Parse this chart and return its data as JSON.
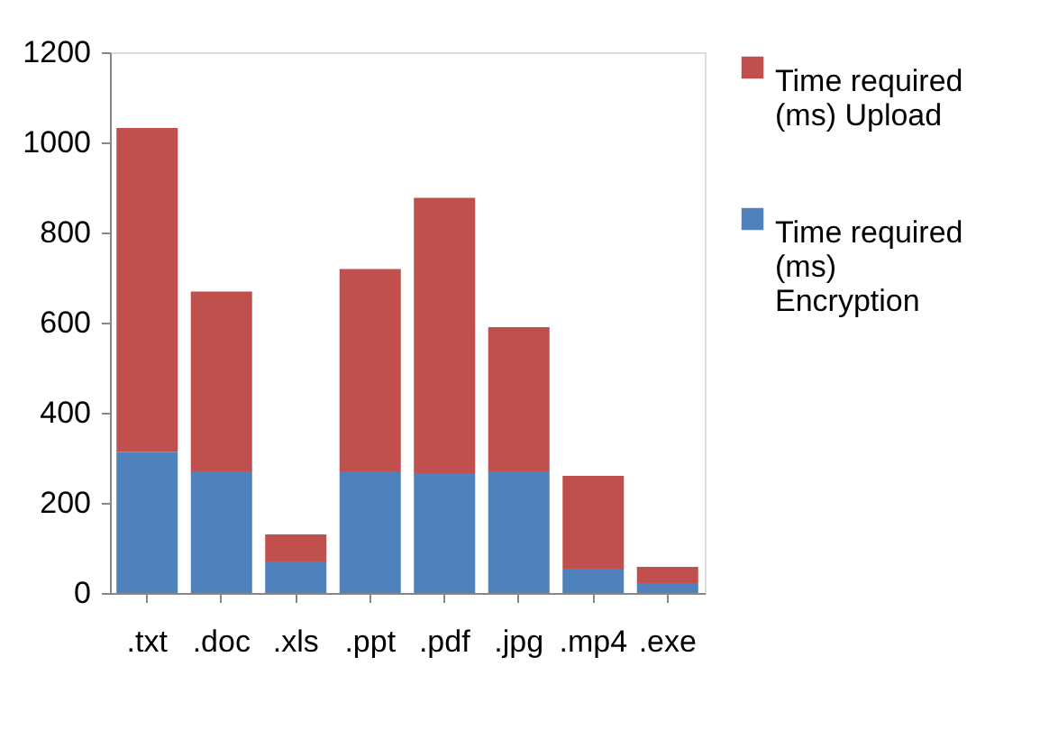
{
  "chart_data": {
    "type": "bar",
    "stacked": true,
    "categories": [
      ".txt",
      ".doc",
      ".xls",
      ".ppt",
      ".pdf",
      ".jpg",
      ".mp4",
      ".exe"
    ],
    "series": [
      {
        "name": "Time required (ms) Encryption",
        "color": "#4f81bd",
        "values": [
          313,
          270,
          70,
          270,
          266,
          270,
          54,
          22
        ]
      },
      {
        "name": "Time required (ms) Upload",
        "color": "#c0504d",
        "values": [
          719,
          399,
          60,
          449,
          611,
          320,
          206,
          36
        ]
      }
    ],
    "ylim": [
      0,
      1200
    ],
    "yticks": [
      0,
      200,
      400,
      600,
      800,
      1000,
      1200
    ],
    "grid": false,
    "legend": "top right"
  }
}
